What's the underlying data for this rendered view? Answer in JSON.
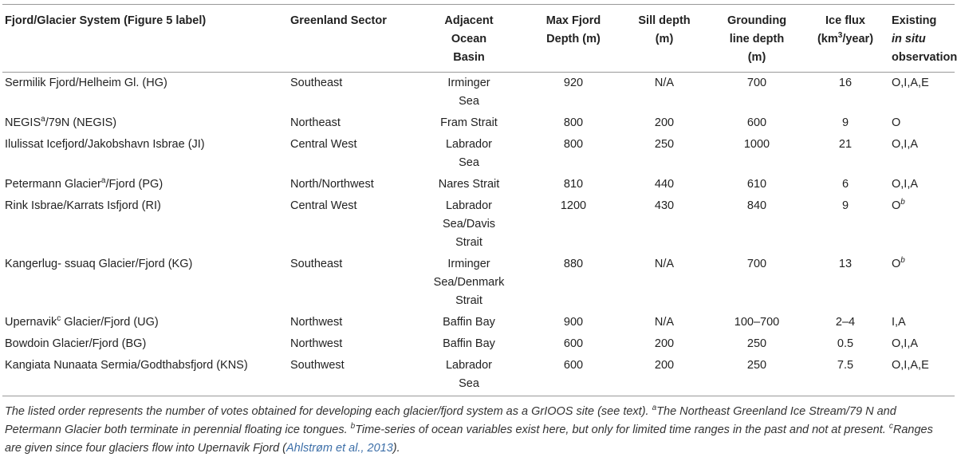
{
  "headers": {
    "system": "Fjord/Glacier System (Figure 5 label)",
    "sector": "Greenland Sector",
    "ocean_line1": "Adjacent",
    "ocean_line2": "Ocean",
    "ocean_line3": "Basin",
    "maxdepth_line1": "Max Fjord",
    "maxdepth_line2": "Depth (m)",
    "sill_line1": "Sill depth",
    "sill_line2": "(m)",
    "grounding_line1": "Grounding",
    "grounding_line2": "line depth",
    "grounding_line3": "(m)",
    "flux_line1": "Ice flux",
    "flux_line2_pre": "(km",
    "flux_sup": "3",
    "flux_line2_post": "/year)",
    "obs_line1": "Existing",
    "obs_line2_italic": "in situ",
    "obs_line3": "observation"
  },
  "rows": [
    {
      "sys_pre": "Sermilik Fjord/Helheim Gl. (HG)",
      "sys_sup": "",
      "sys_post": "",
      "sector": "Southeast",
      "ocean": [
        "Irminger",
        "Sea"
      ],
      "maxdepth": "920",
      "sill": "N/A",
      "grounding": "700",
      "flux": "16",
      "obs": "O,I,A,E",
      "obs_sup": ""
    },
    {
      "sys_pre": "NEGIS",
      "sys_sup": "a",
      "sys_post": "/79N (NEGIS)",
      "sector": "Northeast",
      "ocean": [
        "Fram Strait"
      ],
      "maxdepth": "800",
      "sill": "200",
      "grounding": "600",
      "flux": "9",
      "obs": "O",
      "obs_sup": ""
    },
    {
      "sys_pre": "Ilulissat Icefjord/Jakobshavn Isbrae (JI)",
      "sys_sup": "",
      "sys_post": "",
      "sector": "Central West",
      "ocean": [
        "Labrador",
        "Sea"
      ],
      "maxdepth": "800",
      "sill": "250",
      "grounding": "1000",
      "flux": "21",
      "obs": "O,I,A",
      "obs_sup": ""
    },
    {
      "sys_pre": "Petermann Glacier",
      "sys_sup": "a",
      "sys_post": "/Fjord (PG)",
      "sector": "North/Northwest",
      "ocean": [
        "Nares Strait"
      ],
      "maxdepth": "810",
      "sill": "440",
      "grounding": "610",
      "flux": "6",
      "obs": "O,I,A",
      "obs_sup": ""
    },
    {
      "sys_pre": "Rink Isbrae/Karrats Isfjord (RI)",
      "sys_sup": "",
      "sys_post": "",
      "sector": "Central West",
      "ocean": [
        "Labrador",
        "Sea/Davis",
        "Strait"
      ],
      "maxdepth": "1200",
      "sill": "430",
      "grounding": "840",
      "flux": "9",
      "obs": "O",
      "obs_sup": "b"
    },
    {
      "sys_pre": "Kangerlug- ssuaq Glacier/Fjord (KG)",
      "sys_sup": "",
      "sys_post": "",
      "sector": "Southeast",
      "ocean": [
        "Irminger",
        "Sea/Denmark",
        "Strait"
      ],
      "maxdepth": "880",
      "sill": "N/A",
      "grounding": "700",
      "flux": "13",
      "obs": "O",
      "obs_sup": "b"
    },
    {
      "sys_pre": "Upernavik",
      "sys_sup": "c",
      "sys_post": " Glacier/Fjord (UG)",
      "sector": "Northwest",
      "ocean": [
        "Baffin Bay"
      ],
      "maxdepth": "900",
      "sill": "N/A",
      "grounding": "100–700",
      "flux": "2–4",
      "obs": "I,A",
      "obs_sup": ""
    },
    {
      "sys_pre": "Bowdoin Glacier/Fjord (BG)",
      "sys_sup": "",
      "sys_post": "",
      "sector": "Northwest",
      "ocean": [
        "Baffin Bay"
      ],
      "maxdepth": "600",
      "sill": "200",
      "grounding": "250",
      "flux": "0.5",
      "obs": "O,I,A",
      "obs_sup": ""
    },
    {
      "sys_pre": "Kangiata Nunaata Sermia/Godthabsfjord (KNS)",
      "sys_sup": "",
      "sys_post": "",
      "sector": "Southwest",
      "ocean": [
        "Labrador",
        "Sea"
      ],
      "maxdepth": "600",
      "sill": "200",
      "grounding": "250",
      "flux": "7.5",
      "obs": "O,I,A,E",
      "obs_sup": ""
    }
  ],
  "footnote": {
    "part1": "The listed order represents the number of votes obtained for developing each glacier/fjord system as a GrIOOS site (see text). ",
    "sup_a": "a",
    "part2": "The Northeast Greenland Ice Stream/79 N and Petermann Glacier both terminate in perennial floating ice tongues. ",
    "sup_b": "b",
    "part3": "Time-series of ocean variables exist here, but only for limited time ranges in the past and not at present. ",
    "sup_c": "c",
    "part4": "Ranges are given since four glaciers flow into Upernavik Fjord (",
    "citation": "Ahlstrøm et al., 2013",
    "part5": ")."
  }
}
